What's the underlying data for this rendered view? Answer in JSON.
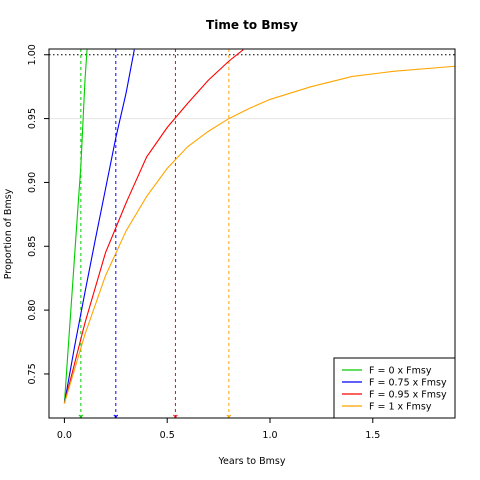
{
  "chart_data": {
    "type": "line",
    "title": "Time to Bmsy",
    "xlabel": "Years to Bmsy",
    "ylabel": "Proportion of Bmsy",
    "xlim": [
      -0.075,
      1.9
    ],
    "ylim": [
      0.7155,
      1.0045
    ],
    "x_ticks": [
      0.0,
      0.5,
      1.0,
      1.5
    ],
    "x_tick_labels": [
      "0.0",
      "0.5",
      "1.0",
      "1.5"
    ],
    "y_ticks": [
      0.75,
      0.8,
      0.85,
      0.9,
      0.95,
      1.0
    ],
    "y_tick_labels": [
      "0.75",
      "0.80",
      "0.85",
      "0.90",
      "0.95",
      "1.00"
    ],
    "grid": false,
    "reference_lines": {
      "horizontal_dotted": 1.0,
      "horizontal_light": 0.95
    },
    "legend_position": "bottom-right",
    "series": [
      {
        "name": "F = 0 x Fmsy",
        "color": "#00cc00",
        "x": [
          0.0,
          0.02,
          0.04,
          0.06,
          0.08,
          0.1,
          0.11
        ],
        "y": [
          0.727,
          0.774,
          0.82,
          0.867,
          0.913,
          0.98,
          1.004
        ],
        "time_to_bmsy": 0.08
      },
      {
        "name": "F = 0.75 x Fmsy",
        "color": "#0000ff",
        "x": [
          0.0,
          0.05,
          0.1,
          0.15,
          0.2,
          0.25,
          0.3,
          0.34
        ],
        "y": [
          0.727,
          0.772,
          0.814,
          0.855,
          0.895,
          0.935,
          0.97,
          1.004
        ],
        "time_to_bmsy": 0.25
      },
      {
        "name": "F = 0.95 x Fmsy",
        "color": "#ff0000",
        "x": [
          0.0,
          0.1,
          0.2,
          0.3,
          0.4,
          0.5,
          0.6,
          0.7,
          0.8,
          0.87
        ],
        "y": [
          0.727,
          0.79,
          0.845,
          0.884,
          0.92,
          0.943,
          0.962,
          0.98,
          0.995,
          1.004
        ],
        "time_to_bmsy": 0.54
      },
      {
        "name": "F = 1 x Fmsy",
        "color": "#ffa500",
        "x": [
          0.0,
          0.1,
          0.2,
          0.3,
          0.4,
          0.5,
          0.6,
          0.7,
          0.8,
          0.9,
          1.0,
          1.2,
          1.4,
          1.6,
          1.9
        ],
        "y": [
          0.727,
          0.781,
          0.827,
          0.862,
          0.889,
          0.911,
          0.928,
          0.94,
          0.95,
          0.958,
          0.965,
          0.975,
          0.983,
          0.987,
          0.991
        ],
        "time_to_bmsy": 0.8
      }
    ]
  }
}
